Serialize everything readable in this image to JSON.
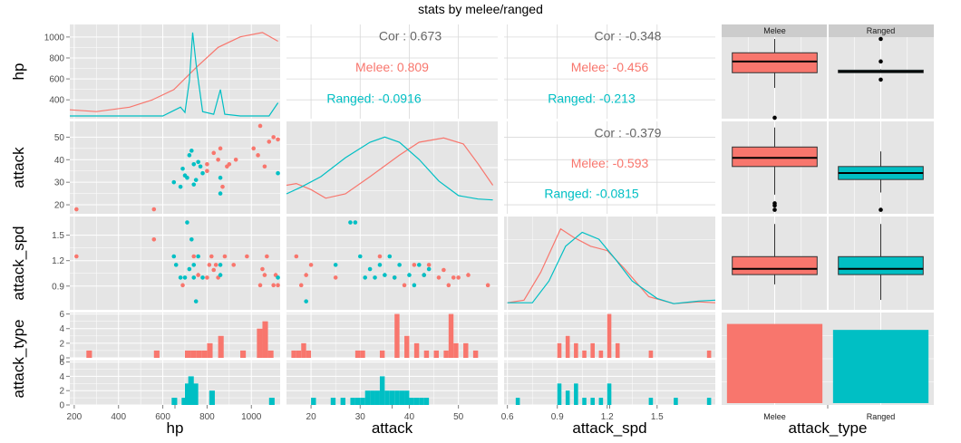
{
  "title": "stats by melee/ranged",
  "colors": {
    "melee": "#F8766D",
    "ranged": "#00BFC4",
    "panel": "#E5E5E5",
    "strip": "#CCCCCC"
  },
  "chart_data": {
    "type": "scatter",
    "title": "stats by melee/ranged",
    "variables": [
      "hp",
      "attack",
      "attack_spd",
      "attack_type"
    ],
    "groups": [
      "Melee",
      "Ranged"
    ],
    "axes": {
      "hp": {
        "range": [
          180,
          1130
        ],
        "ticks": [
          200,
          400,
          600,
          800,
          1000
        ],
        "tick_labels": [
          "200",
          "400",
          "600",
          "800",
          "1000"
        ]
      },
      "attack": {
        "range": [
          15,
          58
        ],
        "ticks": [
          20,
          30,
          40,
          50
        ],
        "tick_labels": [
          "20",
          "30",
          "40",
          "50"
        ]
      },
      "attack_spd": {
        "range": [
          0.58,
          1.85
        ],
        "ticks": [
          0.6,
          0.9,
          1.2,
          1.5
        ],
        "tick_labels": [
          "0.6",
          "0.9",
          "1.2",
          "1.5"
        ]
      },
      "attack_spd_y": {
        "range": [
          0.62,
          1.72
        ],
        "ticks": [
          0.9,
          1.2,
          1.5
        ],
        "tick_labels": [
          "0.9",
          "1.2",
          "1.5"
        ]
      },
      "attack_y": {
        "range": [
          16,
          57
        ],
        "ticks": [
          20,
          30,
          40,
          50
        ],
        "tick_labels": [
          "20",
          "30",
          "40",
          "50"
        ]
      },
      "hp_y": {
        "range": [
          220,
          1120
        ],
        "ticks": [
          400,
          600,
          800,
          1000
        ],
        "tick_labels": [
          "400",
          "600",
          "800",
          "1000"
        ]
      },
      "count": {
        "range": [
          0,
          6.2
        ],
        "ticks": [
          0,
          2,
          4,
          6
        ],
        "tick_labels": [
          "0",
          "2",
          "4",
          "6"
        ]
      }
    },
    "correlations": {
      "hp_attack": {
        "overall": "Cor : 0.673",
        "melee": "Melee: 0.809",
        "ranged": "Ranged: -0.0916"
      },
      "hp_attack_spd": {
        "overall": "Cor : -0.348",
        "melee": "Melee: -0.456",
        "ranged": "Ranged: -0.213"
      },
      "attack_attack_spd": {
        "overall": "Cor : -0.379",
        "melee": "Melee: -0.593",
        "ranged": "Ranged: -0.0815"
      }
    },
    "density": {
      "hp_melee": [
        [
          180,
          0.07
        ],
        [
          300,
          0.05
        ],
        [
          450,
          0.1
        ],
        [
          550,
          0.18
        ],
        [
          650,
          0.3
        ],
        [
          750,
          0.55
        ],
        [
          850,
          0.78
        ],
        [
          950,
          0.9
        ],
        [
          1050,
          0.95
        ],
        [
          1120,
          0.85
        ]
      ],
      "hp_ranged": [
        [
          180,
          0.0
        ],
        [
          600,
          0.0
        ],
        [
          680,
          0.1
        ],
        [
          700,
          0.04
        ],
        [
          720,
          0.4
        ],
        [
          735,
          0.95
        ],
        [
          750,
          0.6
        ],
        [
          780,
          0.05
        ],
        [
          830,
          0.02
        ],
        [
          860,
          0.3
        ],
        [
          880,
          0.02
        ],
        [
          950,
          0.0
        ],
        [
          1080,
          0.0
        ],
        [
          1120,
          0.15
        ]
      ],
      "attack_melee": [
        [
          15,
          0.3
        ],
        [
          17,
          0.32
        ],
        [
          20,
          0.25
        ],
        [
          23,
          0.15
        ],
        [
          27,
          0.2
        ],
        [
          32,
          0.4
        ],
        [
          38,
          0.65
        ],
        [
          42,
          0.8
        ],
        [
          47,
          0.85
        ],
        [
          51,
          0.78
        ],
        [
          54,
          0.55
        ],
        [
          57,
          0.3
        ]
      ],
      "attack_ranged": [
        [
          15,
          0.2
        ],
        [
          18,
          0.28
        ],
        [
          22,
          0.4
        ],
        [
          27,
          0.62
        ],
        [
          32,
          0.8
        ],
        [
          35,
          0.86
        ],
        [
          38,
          0.8
        ],
        [
          42,
          0.6
        ],
        [
          46,
          0.35
        ],
        [
          50,
          0.18
        ],
        [
          54,
          0.14
        ],
        [
          57,
          0.13
        ]
      ],
      "attack_spd_melee": [
        [
          0.6,
          0.05
        ],
        [
          0.7,
          0.08
        ],
        [
          0.8,
          0.4
        ],
        [
          0.92,
          0.9
        ],
        [
          1.0,
          0.8
        ],
        [
          1.1,
          0.7
        ],
        [
          1.2,
          0.65
        ],
        [
          1.3,
          0.45
        ],
        [
          1.45,
          0.12
        ],
        [
          1.6,
          0.04
        ],
        [
          1.75,
          0.06
        ],
        [
          1.85,
          0.05
        ]
      ],
      "attack_spd_ranged": [
        [
          0.6,
          0.05
        ],
        [
          0.75,
          0.05
        ],
        [
          0.85,
          0.3
        ],
        [
          0.95,
          0.7
        ],
        [
          1.05,
          0.86
        ],
        [
          1.15,
          0.78
        ],
        [
          1.25,
          0.55
        ],
        [
          1.35,
          0.3
        ],
        [
          1.5,
          0.1
        ],
        [
          1.6,
          0.04
        ],
        [
          1.75,
          0.07
        ],
        [
          1.85,
          0.08
        ]
      ]
    },
    "points": {
      "hp_attack_melee": [
        [
          210,
          18
        ],
        [
          560,
          18
        ],
        [
          800,
          35
        ],
        [
          800,
          38
        ],
        [
          830,
          43
        ],
        [
          850,
          40
        ],
        [
          860,
          45
        ],
        [
          870,
          28
        ],
        [
          890,
          37
        ],
        [
          900,
          38
        ],
        [
          930,
          40
        ],
        [
          1010,
          45
        ],
        [
          1030,
          42
        ],
        [
          1040,
          55
        ],
        [
          1060,
          37
        ],
        [
          1080,
          48
        ],
        [
          1100,
          50
        ],
        [
          1120,
          49
        ]
      ],
      "hp_attack_ranged": [
        [
          650,
          30
        ],
        [
          680,
          28
        ],
        [
          690,
          36
        ],
        [
          700,
          33
        ],
        [
          710,
          32
        ],
        [
          720,
          42
        ],
        [
          730,
          44
        ],
        [
          740,
          38
        ],
        [
          740,
          29
        ],
        [
          750,
          31
        ],
        [
          760,
          39
        ],
        [
          770,
          37
        ],
        [
          780,
          34
        ],
        [
          860,
          25
        ],
        [
          860,
          32
        ],
        [
          1120,
          34
        ]
      ],
      "hp_attack_spd_melee": [
        [
          210,
          1.25
        ],
        [
          560,
          1.45
        ],
        [
          690,
          0.91
        ],
        [
          740,
          1.25
        ],
        [
          760,
          1.03
        ],
        [
          800,
          1.0
        ],
        [
          810,
          1.15
        ],
        [
          820,
          1.25
        ],
        [
          830,
          1.09
        ],
        [
          840,
          1.15
        ],
        [
          850,
          1.0
        ],
        [
          880,
          1.25
        ],
        [
          920,
          1.15
        ],
        [
          980,
          1.25
        ],
        [
          1040,
          0.91
        ],
        [
          1050,
          1.1
        ],
        [
          1060,
          1.03
        ],
        [
          1070,
          1.25
        ],
        [
          1100,
          0.91
        ],
        [
          1110,
          1.03
        ],
        [
          1120,
          0.91
        ]
      ],
      "hp_attack_spd_ranged": [
        [
          650,
          1.25
        ],
        [
          660,
          1.15
        ],
        [
          680,
          1.0
        ],
        [
          700,
          1.0
        ],
        [
          710,
          1.65
        ],
        [
          720,
          1.1
        ],
        [
          730,
          1.45
        ],
        [
          740,
          1.15
        ],
        [
          740,
          1.0
        ],
        [
          750,
          0.72
        ],
        [
          760,
          1.25
        ],
        [
          780,
          1.0
        ],
        [
          860,
          1.03
        ],
        [
          860,
          1.15
        ],
        [
          1120,
          1.0
        ]
      ],
      "attack_attack_spd_melee": [
        [
          17,
          1.25
        ],
        [
          18,
          0.91
        ],
        [
          19,
          1.03
        ],
        [
          20,
          1.15
        ],
        [
          25,
          1.0
        ],
        [
          34,
          1.25
        ],
        [
          37,
          1.0
        ],
        [
          39,
          0.91
        ],
        [
          41,
          1.15
        ],
        [
          43,
          1.03
        ],
        [
          44,
          1.15
        ],
        [
          46,
          1.0
        ],
        [
          47,
          1.09
        ],
        [
          48,
          0.91
        ],
        [
          49,
          1.0
        ],
        [
          50,
          1.0
        ],
        [
          52,
          1.03
        ],
        [
          56,
          0.91
        ]
      ],
      "attack_attack_spd_ranged": [
        [
          19,
          0.72
        ],
        [
          25,
          1.15
        ],
        [
          28,
          1.65
        ],
        [
          29,
          1.65
        ],
        [
          30,
          1.25
        ],
        [
          31,
          1.0
        ],
        [
          32,
          1.1
        ],
        [
          33,
          1.0
        ],
        [
          34,
          1.15
        ],
        [
          35,
          1.03
        ],
        [
          36,
          1.25
        ],
        [
          37,
          1.0
        ],
        [
          38,
          1.15
        ],
        [
          40,
          1.03
        ],
        [
          41,
          0.91
        ],
        [
          42,
          1.15
        ],
        [
          43,
          1.03
        ],
        [
          44,
          1.1
        ]
      ]
    },
    "histograms": {
      "hp_melee": {
        "bin_width": 25,
        "bins": [
          [
            255,
            1
          ],
          [
            560,
            1
          ],
          [
            700,
            1
          ],
          [
            725,
            1
          ],
          [
            750,
            1
          ],
          [
            775,
            1
          ],
          [
            800,
            2
          ],
          [
            850,
            3
          ],
          [
            950,
            1
          ],
          [
            1025,
            4
          ],
          [
            1050,
            5
          ],
          [
            1075,
            1
          ]
        ]
      },
      "hp_ranged": {
        "bin_width": 25,
        "bins": [
          [
            640,
            1
          ],
          [
            685,
            1
          ],
          [
            700,
            3
          ],
          [
            715,
            4
          ],
          [
            735,
            3
          ],
          [
            810,
            2
          ],
          [
            1080,
            1
          ]
        ]
      },
      "attack_melee": {
        "bin_width": 1,
        "bins": [
          [
            16,
            1
          ],
          [
            17,
            1
          ],
          [
            18,
            2
          ],
          [
            19,
            1
          ],
          [
            29,
            1
          ],
          [
            30,
            1
          ],
          [
            34,
            1
          ],
          [
            37,
            6
          ],
          [
            39,
            3
          ],
          [
            41,
            2
          ],
          [
            43,
            1
          ],
          [
            45,
            1
          ],
          [
            47,
            1
          ],
          [
            48,
            6
          ],
          [
            49,
            2
          ],
          [
            51,
            2
          ],
          [
            53,
            1
          ]
        ]
      },
      "attack_ranged": {
        "bin_width": 1,
        "bins": [
          [
            20,
            1
          ],
          [
            24,
            1
          ],
          [
            26,
            1
          ],
          [
            28,
            1
          ],
          [
            29,
            1
          ],
          [
            30,
            1
          ],
          [
            31,
            2
          ],
          [
            32,
            2
          ],
          [
            33,
            2
          ],
          [
            34,
            4
          ],
          [
            35,
            2
          ],
          [
            36,
            2
          ],
          [
            37,
            2
          ],
          [
            38,
            2
          ],
          [
            39,
            2
          ],
          [
            40,
            1
          ],
          [
            41,
            1
          ],
          [
            42,
            1
          ],
          [
            43,
            1
          ]
        ]
      },
      "attack_spd_melee": {
        "bin_width": 0.025,
        "bins": [
          [
            0.9,
            2
          ],
          [
            0.95,
            3
          ],
          [
            1.0,
            2
          ],
          [
            1.05,
            1
          ],
          [
            1.1,
            2
          ],
          [
            1.15,
            1
          ],
          [
            1.2,
            6
          ],
          [
            1.25,
            2
          ],
          [
            1.45,
            1
          ],
          [
            1.8,
            1
          ]
        ]
      },
      "attack_spd_ranged": {
        "bin_width": 0.025,
        "bins": [
          [
            0.65,
            1
          ],
          [
            0.9,
            3
          ],
          [
            0.95,
            2
          ],
          [
            1.0,
            3
          ],
          [
            1.05,
            1
          ],
          [
            1.1,
            1
          ],
          [
            1.15,
            1
          ],
          [
            1.2,
            3
          ],
          [
            1.45,
            1
          ],
          [
            1.6,
            1
          ],
          [
            1.8,
            1
          ]
        ]
      }
    },
    "boxplots": {
      "hp": {
        "melee": {
          "q1": 730,
          "median": 860,
          "q3": 960,
          "whisker_low": 555,
          "whisker_high": 1120,
          "outliers": [
            210
          ]
        },
        "ranged": {
          "q1": 730,
          "median": 745,
          "q3": 760,
          "whisker_low": 730,
          "whisker_high": 770,
          "outliers": [
            1120,
            860,
            650
          ]
        }
      },
      "attack": {
        "melee": {
          "q1": 37,
          "median": 41,
          "q3": 46,
          "whisker_low": 24,
          "whisker_high": 55,
          "outliers": [
            20,
            19,
            17
          ]
        },
        "ranged": {
          "q1": 31,
          "median": 34,
          "q3": 37,
          "whisker_low": 25,
          "whisker_high": 44,
          "outliers": [
            17
          ]
        }
      },
      "attack_spd": {
        "melee": {
          "q1": 1.03,
          "median": 1.1,
          "q3": 1.25,
          "whisker_low": 0.91,
          "whisker_high": 1.65,
          "outliers": []
        },
        "ranged": {
          "q1": 1.03,
          "median": 1.1,
          "q3": 1.25,
          "whisker_low": 0.72,
          "whisker_high": 1.65,
          "outliers": []
        }
      }
    },
    "counts": {
      "melee": 0.93,
      "ranged": 0.86
    },
    "facet_labels": [
      "Melee",
      "Ranged"
    ],
    "axis_titles": {
      "x": [
        "hp",
        "attack",
        "attack_spd",
        "attack_type"
      ],
      "y": [
        "hp",
        "attack",
        "attack_spd",
        "attack_type"
      ]
    }
  }
}
